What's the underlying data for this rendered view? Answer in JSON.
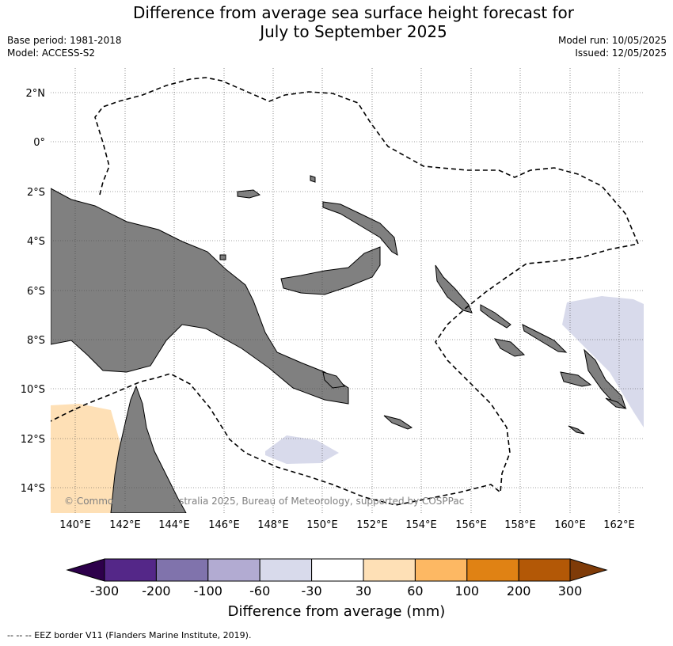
{
  "title_line1": "Difference from average sea surface height forecast for",
  "title_line2": "July to September 2025",
  "base_period": "Base period: 1981-2018",
  "model": "Model: ACCESS-S2",
  "model_run": "Model run: 10/05/2025",
  "issued": "Issued: 12/05/2025",
  "map": {
    "lon_range": [
      139,
      163
    ],
    "lat_range": [
      -15,
      3
    ],
    "lon_ticks": [
      "140°E",
      "142°E",
      "144°E",
      "146°E",
      "148°E",
      "150°E",
      "152°E",
      "154°E",
      "156°E",
      "158°E",
      "160°E",
      "162°E"
    ],
    "lat_ticks": [
      "2°N",
      "0°",
      "2°S",
      "4°S",
      "6°S",
      "8°S",
      "10°S",
      "12°S",
      "14°S"
    ],
    "land_color": "#808080",
    "copyright": "© Commonwealth of Australia 2025, Bureau of Meteorology, supported by COSPPac"
  },
  "colorbar": {
    "label": "Difference from average (mm)",
    "ticks": [
      "-300",
      "-200",
      "-100",
      "-60",
      "-30",
      "30",
      "60",
      "100",
      "200",
      "300"
    ],
    "colors": [
      "#2d004b",
      "#542788",
      "#8073ac",
      "#b2abd2",
      "#d8daeb",
      "#ffffff",
      "#fee0b6",
      "#fdb863",
      "#e08214",
      "#b35806",
      "#7f3b08"
    ]
  },
  "footnote": "-- -- -- EEZ border V11 (Flanders Marine Institute, 2019)."
}
